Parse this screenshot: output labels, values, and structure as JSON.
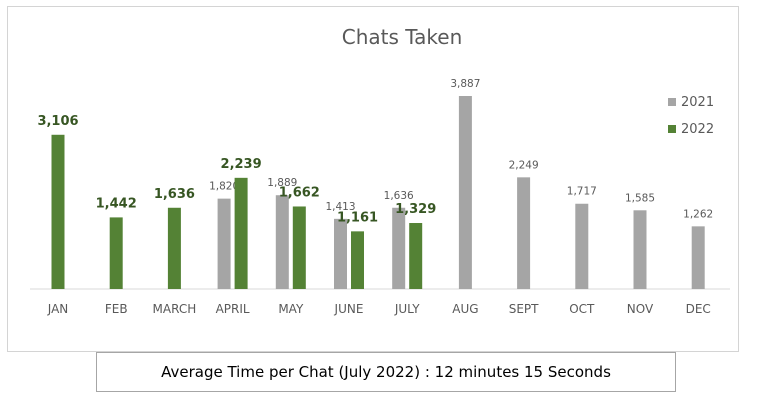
{
  "chart_data": {
    "type": "bar",
    "title": "Chats Taken",
    "categories": [
      "JAN",
      "FEB",
      "MARCH",
      "APRIL",
      "MAY",
      "JUNE",
      "JULY",
      "AUG",
      "SEPT",
      "OCT",
      "NOV",
      "DEC"
    ],
    "series": [
      {
        "name": "2021",
        "color": "#a5a5a5",
        "values": [
          null,
          null,
          null,
          1820,
          1889,
          1413,
          1636,
          3887,
          2249,
          1717,
          1585,
          1262
        ],
        "labels": [
          "",
          "",
          "",
          "1,820",
          "1,889",
          "1,413",
          "1,636",
          "3,887",
          "2,249",
          "1,717",
          "1,585",
          "1,262"
        ]
      },
      {
        "name": "2022",
        "color": "#548235",
        "values": [
          3106,
          1442,
          1636,
          2239,
          1662,
          1161,
          1329,
          null,
          null,
          null,
          null,
          null
        ],
        "labels": [
          "3,106",
          "1,442",
          "1,636",
          "2,239",
          "1,662",
          "1,161",
          "1,329",
          "",
          "",
          "",
          "",
          ""
        ]
      }
    ],
    "ylim": [
      0,
      3887
    ],
    "grid": false,
    "legend_position": "right"
  },
  "caption": "Average Time per Chat (July 2022) : 12 minutes 15 Seconds"
}
